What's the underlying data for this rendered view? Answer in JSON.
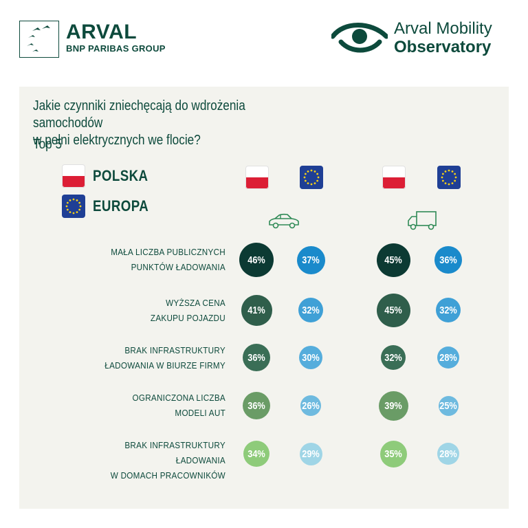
{
  "header": {
    "brand_name": "ARVAL",
    "brand_sub": "BNP PARIBAS GROUP",
    "observatory_line1": "Arval Mobility",
    "observatory_line2": "Observatory",
    "logo_icon": "arval-birds-logo-icon",
    "observatory_icon": "eye-logo-icon"
  },
  "question": {
    "line1": "Jakie czynniki zniechęcają do wdrożenia samochodów",
    "line2": "w pełni elektrycznych we flocie?",
    "subtitle": "Top 5"
  },
  "legend": [
    {
      "label": "POLSKA",
      "flag": "poland-flag-icon"
    },
    {
      "label": "EUROPA",
      "flag": "eu-flag-icon"
    }
  ],
  "groups": [
    {
      "icon": "car-icon",
      "columns": [
        "poland-flag-icon",
        "eu-flag-icon"
      ]
    },
    {
      "icon": "van-icon",
      "columns": [
        "poland-flag-icon",
        "eu-flag-icon"
      ]
    }
  ],
  "colors": {
    "dark": "#0c3a33",
    "poland_scale": [
      "#0c3a33",
      "#2f5e4b",
      "#3a6e56",
      "#6a9c66",
      "#8ecb7a"
    ],
    "europe_scale": [
      "#1a8acb",
      "#3fa0d6",
      "#55addc",
      "#6ebadf",
      "#9fd5e6"
    ],
    "accent": "#2f8a56"
  },
  "chart_data": {
    "type": "bubble-table",
    "title": "Jakie czynniki zniechęcają do wdrożenia samochodów w pełni elektrycznych we flocie?",
    "subtitle": "Top 5",
    "categories": [
      [
        "MAŁA LICZBA PUBLICZNYCH",
        "PUNKTÓW ŁADOWANIA"
      ],
      [
        "WYŻSZA CENA",
        "ZAKUPU POJAZDU"
      ],
      [
        "BRAK INFRASTRUKTURY",
        "ŁADOWANIA W BIURZE FIRMY"
      ],
      [
        "OGRANICZONA LICZBA",
        "MODELI AUT"
      ],
      [
        "BRAK INFRASTRUKTURY ŁADOWANIA",
        "W DOMACH PRACOWNIKÓW"
      ]
    ],
    "series": [
      {
        "name": "POLSKA",
        "group": "car",
        "values": [
          46,
          41,
          36,
          36,
          34
        ],
        "labels": [
          "46%",
          "41%",
          "36%",
          "36%",
          "34%"
        ]
      },
      {
        "name": "EUROPA",
        "group": "car",
        "values": [
          37,
          32,
          30,
          26,
          29
        ],
        "labels": [
          "37%",
          "32%",
          "30%",
          "26%",
          "29%"
        ]
      },
      {
        "name": "POLSKA",
        "group": "van",
        "values": [
          45,
          45,
          32,
          39,
          35
        ],
        "labels": [
          "45%",
          "45%",
          "32%",
          "39%",
          "35%"
        ]
      },
      {
        "name": "EUROPA",
        "group": "van",
        "values": [
          36,
          32,
          28,
          25,
          28
        ],
        "labels": [
          "36%",
          "32%",
          "28%",
          "25%",
          "28%"
        ]
      }
    ]
  }
}
